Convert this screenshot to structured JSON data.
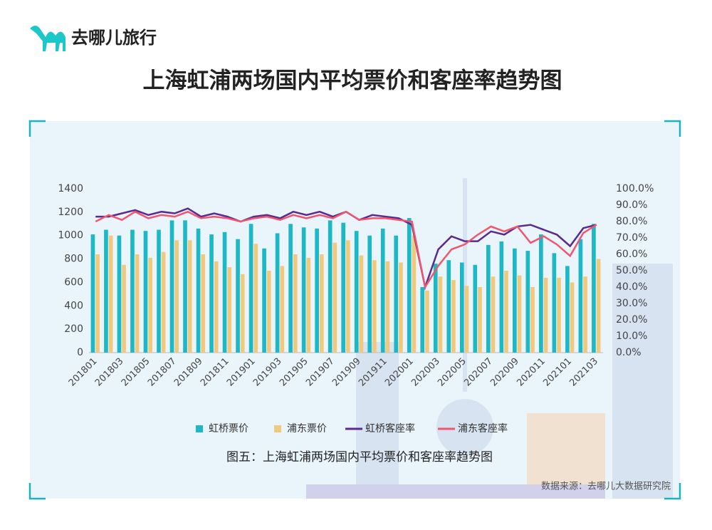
{
  "brand": "去哪儿旅行",
  "caption": "图五：上海虹浦两场国内平均票价和客座率趋势图",
  "source": "数据来源：去哪儿大数据研究院",
  "chart_data": {
    "type": "bar-line",
    "title": "上海虹浦两场国内平均票价和客座率趋势图",
    "categories": [
      "201801",
      null,
      "201803",
      null,
      "201805",
      null,
      "201807",
      null,
      "201809",
      null,
      "201811",
      null,
      "201901",
      null,
      "201903",
      null,
      "201905",
      null,
      "201907",
      null,
      "201909",
      null,
      "201911",
      null,
      "202001",
      null,
      "202003",
      null,
      "202005",
      null,
      "202007",
      null,
      "202009",
      null,
      "202011",
      null,
      "202101",
      null,
      "202103"
    ],
    "series": [
      {
        "name": "虹桥票价",
        "kind": "bar",
        "color": "#1db8c6",
        "values": [
          1010,
          1050,
          1000,
          1050,
          1040,
          1050,
          1130,
          1130,
          1060,
          1010,
          1030,
          970,
          1100,
          890,
          1020,
          1100,
          1070,
          1060,
          1130,
          1110,
          1040,
          1000,
          1060,
          1000,
          1150,
          560,
          760,
          790,
          770,
          750,
          920,
          950,
          890,
          870,
          1010,
          850,
          740,
          970,
          1100
        ]
      },
      {
        "name": "浦东票价",
        "kind": "bar",
        "color": "#f1c97c",
        "values": [
          840,
          1000,
          750,
          840,
          810,
          860,
          960,
          960,
          840,
          780,
          730,
          670,
          930,
          700,
          740,
          840,
          810,
          840,
          940,
          960,
          830,
          790,
          780,
          770,
          1000,
          530,
          650,
          620,
          570,
          560,
          650,
          700,
          660,
          560,
          640,
          640,
          600,
          650,
          800
        ]
      },
      {
        "name": "虹桥客座率",
        "kind": "line",
        "axis": "y2",
        "color": "#5a2a8e",
        "values": [
          83,
          83,
          85,
          87,
          84,
          86,
          85,
          88,
          83,
          85,
          83,
          80,
          83,
          84,
          82,
          86,
          84,
          86,
          83,
          86,
          81,
          84,
          83,
          82,
          78,
          40,
          63,
          71,
          68,
          68,
          74,
          72,
          77,
          78,
          75,
          72,
          65,
          76,
          78
        ]
      },
      {
        "name": "浦东客座率",
        "kind": "line",
        "axis": "y2",
        "color": "#f0566f",
        "values": [
          80,
          84,
          81,
          86,
          82,
          84,
          83,
          86,
          82,
          83,
          82,
          80,
          82,
          83,
          81,
          84,
          82,
          84,
          82,
          86,
          81,
          82,
          82,
          81,
          80,
          40,
          53,
          63,
          66,
          72,
          77,
          74,
          77,
          67,
          71,
          66,
          59,
          73,
          78
        ]
      }
    ],
    "ylim": [
      0,
      1400
    ],
    "yticks": [
      0,
      200,
      400,
      600,
      800,
      1000,
      1200,
      1400
    ],
    "y2lim": [
      0,
      100
    ],
    "y2ticks": [
      {
        "value": 0,
        "label": "0.0%"
      },
      {
        "value": 10,
        "label": "10.0%"
      },
      {
        "value": 20,
        "label": "20.0%"
      },
      {
        "value": 30,
        "label": "30.0%"
      },
      {
        "value": 40,
        "label": "40.0%"
      },
      {
        "value": 50,
        "label": "50.0%"
      },
      {
        "value": 60,
        "label": "60.0%"
      },
      {
        "value": 70,
        "label": "70.0%"
      },
      {
        "value": 80,
        "label": "80.0%"
      },
      {
        "value": 90,
        "label": "90.0%"
      },
      {
        "value": 100,
        "label": "100.0%"
      }
    ],
    "legend": "bottom"
  }
}
